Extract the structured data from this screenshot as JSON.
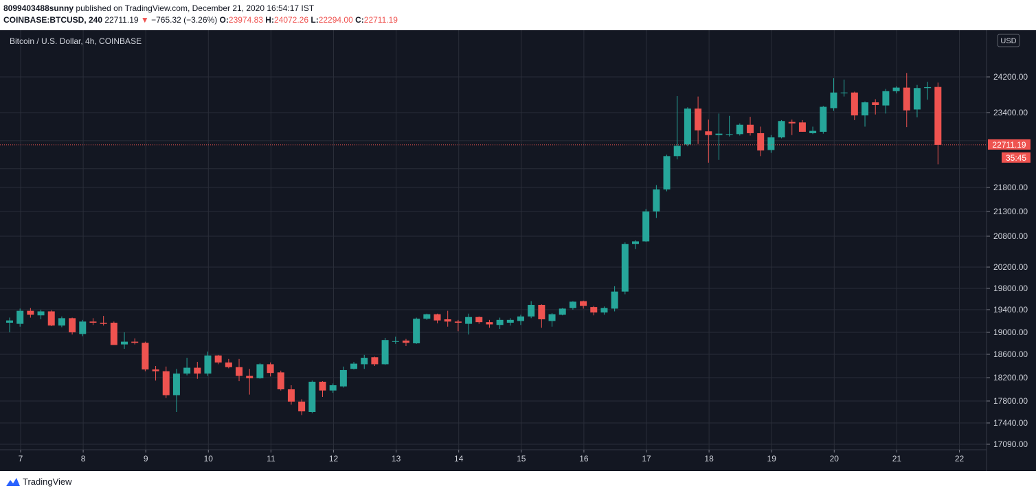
{
  "header": {
    "user": "8099403488sunny",
    "published": " published on TradingView.com, December 21, 2020 16:54:17 IST",
    "symbol": "COINBASE:BTCUSD, 240",
    "last": "22711.19",
    "arrow": "▼",
    "change": "−765.32 (−3.26%)",
    "o_label": "O:",
    "o_value": "23974.83",
    "h_label": "H:",
    "h_value": "24072.26",
    "l_label": "L:",
    "l_value": "22294.00",
    "c_label": "C:",
    "c_value": "22711.19"
  },
  "footer": {
    "brand": "TradingView"
  },
  "colors": {
    "up": "#26a69a",
    "down": "#ef5350",
    "background": "#131722",
    "grid": "#2a2e39",
    "text": "#d1d4dc"
  },
  "chart_data": {
    "type": "candlestick",
    "title": "Bitcoin / U.S. Dollar, 4h, COINBASE",
    "currency_button": "USD",
    "price_tag": "22711.19",
    "countdown": "35:45",
    "current_price": 22711.19,
    "y_axis_ticks": [
      17090,
      17440,
      17800,
      18200,
      18600,
      19000,
      19400,
      19800,
      20200,
      20800,
      21300,
      21800,
      23400,
      24200
    ],
    "y_tick_labels": [
      "17090.00",
      "17440.00",
      "17800.00",
      "18200.00",
      "18600.00",
      "19000.00",
      "19400.00",
      "19800.00",
      "20200.00",
      "20800.00",
      "21300.00",
      "21800.00",
      "23400.00",
      "24200.00"
    ],
    "x_labels": [
      {
        "label": "7",
        "day": 7
      },
      {
        "label": "8",
        "day": 8
      },
      {
        "label": "9",
        "day": 9
      },
      {
        "label": "10",
        "day": 10
      },
      {
        "label": "11",
        "day": 11
      },
      {
        "label": "12",
        "day": 12
      },
      {
        "label": "13",
        "day": 13
      },
      {
        "label": "14",
        "day": 14
      },
      {
        "label": "15",
        "day": 15
      },
      {
        "label": "16",
        "day": 16
      },
      {
        "label": "17",
        "day": 17
      },
      {
        "label": "18",
        "day": 18
      },
      {
        "label": "19",
        "day": 19
      },
      {
        "label": "20",
        "day": 20
      },
      {
        "label": "21",
        "day": 21
      },
      {
        "label": "22",
        "day": 22
      }
    ],
    "start_day": 7,
    "candles_per_day": 6,
    "candles": [
      {
        "o": 19170,
        "h": 19260,
        "l": 19000,
        "c": 19210
      },
      {
        "o": 19150,
        "h": 19420,
        "l": 19100,
        "c": 19380
      },
      {
        "o": 19380,
        "h": 19430,
        "l": 19260,
        "c": 19310
      },
      {
        "o": 19300,
        "h": 19400,
        "l": 19230,
        "c": 19370
      },
      {
        "o": 19370,
        "h": 19390,
        "l": 19110,
        "c": 19120
      },
      {
        "o": 19120,
        "h": 19280,
        "l": 19090,
        "c": 19250
      },
      {
        "o": 19250,
        "h": 19260,
        "l": 18960,
        "c": 19000
      },
      {
        "o": 18970,
        "h": 19220,
        "l": 18930,
        "c": 19190
      },
      {
        "o": 19190,
        "h": 19250,
        "l": 19130,
        "c": 19170
      },
      {
        "o": 19170,
        "h": 19290,
        "l": 19120,
        "c": 19150
      },
      {
        "o": 19170,
        "h": 19190,
        "l": 18780,
        "c": 18770
      },
      {
        "o": 18780,
        "h": 19000,
        "l": 18700,
        "c": 18830
      },
      {
        "o": 18830,
        "h": 18890,
        "l": 18780,
        "c": 18810
      },
      {
        "o": 18810,
        "h": 18830,
        "l": 18310,
        "c": 18340
      },
      {
        "o": 18340,
        "h": 18400,
        "l": 18150,
        "c": 18310
      },
      {
        "o": 18310,
        "h": 18390,
        "l": 17850,
        "c": 17900
      },
      {
        "o": 17900,
        "h": 18350,
        "l": 17620,
        "c": 18270
      },
      {
        "o": 18270,
        "h": 18540,
        "l": 18240,
        "c": 18370
      },
      {
        "o": 18370,
        "h": 18470,
        "l": 18180,
        "c": 18270
      },
      {
        "o": 18270,
        "h": 18650,
        "l": 18230,
        "c": 18580
      },
      {
        "o": 18580,
        "h": 18590,
        "l": 18430,
        "c": 18460
      },
      {
        "o": 18460,
        "h": 18520,
        "l": 18360,
        "c": 18380
      },
      {
        "o": 18380,
        "h": 18520,
        "l": 18140,
        "c": 18230
      },
      {
        "o": 18230,
        "h": 18350,
        "l": 17910,
        "c": 18190
      },
      {
        "o": 18190,
        "h": 18450,
        "l": 18180,
        "c": 18430
      },
      {
        "o": 18430,
        "h": 18460,
        "l": 18220,
        "c": 18280
      },
      {
        "o": 18290,
        "h": 18320,
        "l": 17980,
        "c": 18000
      },
      {
        "o": 18000,
        "h": 18070,
        "l": 17740,
        "c": 17790
      },
      {
        "o": 17790,
        "h": 17830,
        "l": 17570,
        "c": 17630
      },
      {
        "o": 17620,
        "h": 18150,
        "l": 17600,
        "c": 18130
      },
      {
        "o": 18130,
        "h": 18140,
        "l": 17870,
        "c": 17980
      },
      {
        "o": 17980,
        "h": 18100,
        "l": 17940,
        "c": 18070
      },
      {
        "o": 18050,
        "h": 18390,
        "l": 18030,
        "c": 18330
      },
      {
        "o": 18350,
        "h": 18470,
        "l": 18340,
        "c": 18440
      },
      {
        "o": 18430,
        "h": 18590,
        "l": 18350,
        "c": 18540
      },
      {
        "o": 18550,
        "h": 18560,
        "l": 18400,
        "c": 18430
      },
      {
        "o": 18430,
        "h": 18900,
        "l": 18420,
        "c": 18860
      },
      {
        "o": 18830,
        "h": 18920,
        "l": 18790,
        "c": 18840
      },
      {
        "o": 18850,
        "h": 18880,
        "l": 18750,
        "c": 18810
      },
      {
        "o": 18800,
        "h": 19260,
        "l": 18790,
        "c": 19240
      },
      {
        "o": 19240,
        "h": 19330,
        "l": 19220,
        "c": 19320
      },
      {
        "o": 19320,
        "h": 19330,
        "l": 19160,
        "c": 19210
      },
      {
        "o": 19230,
        "h": 19380,
        "l": 19100,
        "c": 19190
      },
      {
        "o": 19190,
        "h": 19220,
        "l": 19020,
        "c": 19170
      },
      {
        "o": 19150,
        "h": 19330,
        "l": 18960,
        "c": 19270
      },
      {
        "o": 19270,
        "h": 19280,
        "l": 19150,
        "c": 19180
      },
      {
        "o": 19180,
        "h": 19220,
        "l": 19080,
        "c": 19140
      },
      {
        "o": 19130,
        "h": 19260,
        "l": 19060,
        "c": 19220
      },
      {
        "o": 19170,
        "h": 19250,
        "l": 19120,
        "c": 19220
      },
      {
        "o": 19200,
        "h": 19310,
        "l": 19130,
        "c": 19280
      },
      {
        "o": 19280,
        "h": 19560,
        "l": 19250,
        "c": 19490
      },
      {
        "o": 19490,
        "h": 19500,
        "l": 19080,
        "c": 19230
      },
      {
        "o": 19200,
        "h": 19340,
        "l": 19100,
        "c": 19320
      },
      {
        "o": 19310,
        "h": 19430,
        "l": 19300,
        "c": 19420
      },
      {
        "o": 19430,
        "h": 19560,
        "l": 19400,
        "c": 19550
      },
      {
        "o": 19560,
        "h": 19570,
        "l": 19420,
        "c": 19470
      },
      {
        "o": 19450,
        "h": 19470,
        "l": 19300,
        "c": 19350
      },
      {
        "o": 19350,
        "h": 19460,
        "l": 19310,
        "c": 19430
      },
      {
        "o": 19420,
        "h": 19840,
        "l": 19370,
        "c": 19740
      },
      {
        "o": 19740,
        "h": 20680,
        "l": 19690,
        "c": 20650
      },
      {
        "o": 20650,
        "h": 20720,
        "l": 20550,
        "c": 20700
      },
      {
        "o": 20700,
        "h": 21350,
        "l": 20690,
        "c": 21300
      },
      {
        "o": 21300,
        "h": 21850,
        "l": 21170,
        "c": 21760
      },
      {
        "o": 21760,
        "h": 22500,
        "l": 21720,
        "c": 22470
      },
      {
        "o": 22470,
        "h": 23770,
        "l": 22400,
        "c": 22690
      },
      {
        "o": 22720,
        "h": 23520,
        "l": 22680,
        "c": 23490
      },
      {
        "o": 23490,
        "h": 23760,
        "l": 22730,
        "c": 23020
      },
      {
        "o": 23000,
        "h": 23250,
        "l": 22330,
        "c": 22920
      },
      {
        "o": 22920,
        "h": 23380,
        "l": 22390,
        "c": 22950
      },
      {
        "o": 22940,
        "h": 23330,
        "l": 22890,
        "c": 22940
      },
      {
        "o": 22940,
        "h": 23170,
        "l": 22910,
        "c": 23140
      },
      {
        "o": 23140,
        "h": 23310,
        "l": 22910,
        "c": 22960
      },
      {
        "o": 22960,
        "h": 23100,
        "l": 22470,
        "c": 22590
      },
      {
        "o": 22600,
        "h": 22920,
        "l": 22540,
        "c": 22870
      },
      {
        "o": 22870,
        "h": 23240,
        "l": 22850,
        "c": 23220
      },
      {
        "o": 23200,
        "h": 23250,
        "l": 22920,
        "c": 23170
      },
      {
        "o": 23190,
        "h": 23240,
        "l": 22990,
        "c": 22990
      },
      {
        "o": 22960,
        "h": 23100,
        "l": 22940,
        "c": 23010
      },
      {
        "o": 22990,
        "h": 23550,
        "l": 22950,
        "c": 23530
      },
      {
        "o": 23500,
        "h": 24170,
        "l": 23440,
        "c": 23850
      },
      {
        "o": 23850,
        "h": 24140,
        "l": 23760,
        "c": 23850
      },
      {
        "o": 23850,
        "h": 23870,
        "l": 23240,
        "c": 23340
      },
      {
        "o": 23340,
        "h": 23650,
        "l": 23100,
        "c": 23630
      },
      {
        "o": 23630,
        "h": 23700,
        "l": 23360,
        "c": 23570
      },
      {
        "o": 23560,
        "h": 23930,
        "l": 23380,
        "c": 23880
      },
      {
        "o": 23880,
        "h": 23990,
        "l": 23830,
        "c": 23960
      },
      {
        "o": 23960,
        "h": 24290,
        "l": 23090,
        "c": 23450
      },
      {
        "o": 23470,
        "h": 24020,
        "l": 23300,
        "c": 23950
      },
      {
        "o": 23950,
        "h": 24090,
        "l": 23690,
        "c": 23970
      },
      {
        "o": 23974.83,
        "h": 24072.26,
        "l": 22294.0,
        "c": 22711.19
      }
    ]
  }
}
